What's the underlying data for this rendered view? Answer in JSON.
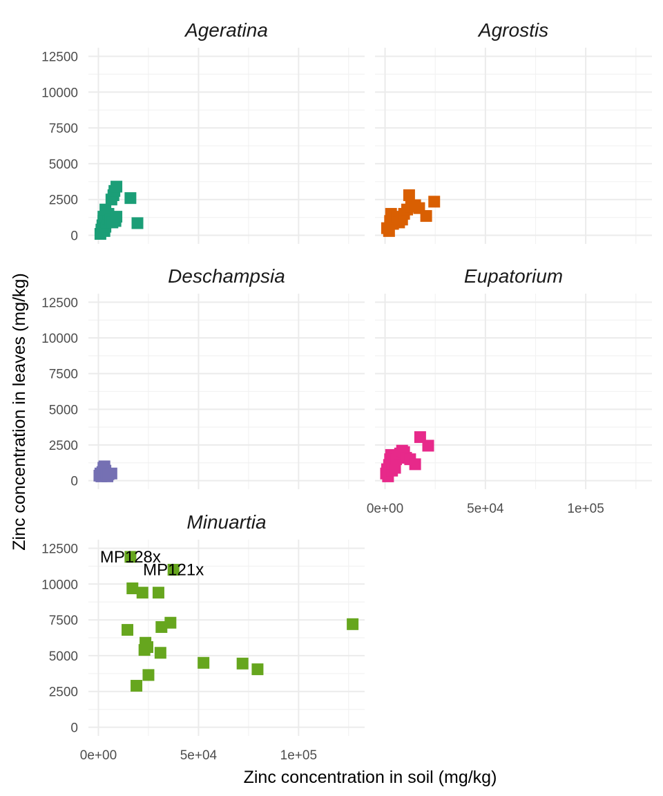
{
  "chart_data": {
    "type": "scatter",
    "facet_by": "genus",
    "xlabel": "Zinc concentration in soil (mg/kg)",
    "ylabel": "Zinc concentration in leaves (mg/kg)",
    "xlim": [
      -5000,
      133000
    ],
    "ylim": [
      -600,
      13100
    ],
    "x_ticks": [
      0,
      50000,
      100000
    ],
    "x_tick_labels": [
      "0e+00",
      "5e+04",
      "1e+05"
    ],
    "y_ticks": [
      0,
      2500,
      5000,
      7500,
      10000,
      12500
    ],
    "y_tick_labels": [
      "0",
      "2500",
      "5000",
      "7500",
      "10000",
      "12500"
    ],
    "grid": true,
    "marker": "square",
    "panels": [
      {
        "name": "Ageratina",
        "color": "#1b9e77",
        "points": [
          [
            1000,
            100
          ],
          [
            1500,
            400
          ],
          [
            2000,
            700
          ],
          [
            2500,
            1000
          ],
          [
            3000,
            300
          ],
          [
            3500,
            600
          ],
          [
            4000,
            900
          ],
          [
            2500,
            1300
          ],
          [
            4500,
            1200
          ],
          [
            5000,
            1500
          ],
          [
            3500,
            1800
          ],
          [
            6000,
            1100
          ],
          [
            7000,
            900
          ],
          [
            8500,
            1000
          ],
          [
            9000,
            1300
          ],
          [
            6500,
            2500
          ],
          [
            7500,
            2800
          ],
          [
            8000,
            3100
          ],
          [
            9000,
            3400
          ],
          [
            16000,
            2600
          ],
          [
            19500,
            850
          ]
        ]
      },
      {
        "name": "Agrostis",
        "color": "#d95f02",
        "points": [
          [
            1000,
            500
          ],
          [
            2000,
            300
          ],
          [
            2500,
            1000
          ],
          [
            3000,
            1500
          ],
          [
            4000,
            800
          ],
          [
            5000,
            1200
          ],
          [
            6000,
            1300
          ],
          [
            7000,
            900
          ],
          [
            8500,
            1100
          ],
          [
            9500,
            1500
          ],
          [
            11000,
            1800
          ],
          [
            12000,
            2800
          ],
          [
            13000,
            2000
          ],
          [
            15000,
            2100
          ],
          [
            17000,
            1900
          ],
          [
            20500,
            1350
          ],
          [
            24500,
            2350
          ]
        ]
      },
      {
        "name": "Deschampsia",
        "color": "#7570b3",
        "points": [
          [
            500,
            350
          ],
          [
            1000,
            500
          ],
          [
            1500,
            300
          ],
          [
            2000,
            600
          ],
          [
            2500,
            900
          ],
          [
            3000,
            1000
          ],
          [
            3500,
            700
          ],
          [
            4000,
            400
          ],
          [
            4500,
            300
          ],
          [
            5000,
            450
          ],
          [
            6500,
            500
          ]
        ]
      },
      {
        "name": "Eupatorium",
        "color": "#e7298a",
        "points": [
          [
            500,
            500
          ],
          [
            1000,
            800
          ],
          [
            1500,
            300
          ],
          [
            2000,
            1100
          ],
          [
            2500,
            1500
          ],
          [
            3000,
            1800
          ],
          [
            3500,
            700
          ],
          [
            4000,
            1200
          ],
          [
            5000,
            900
          ],
          [
            5500,
            1500
          ],
          [
            6500,
            1700
          ],
          [
            7500,
            1900
          ],
          [
            8500,
            2100
          ],
          [
            9500,
            2000
          ],
          [
            10500,
            1600
          ],
          [
            12500,
            1500
          ],
          [
            15000,
            1150
          ],
          [
            17500,
            3050
          ],
          [
            21500,
            2450
          ]
        ]
      },
      {
        "name": "Minuartia",
        "color": "#66a61e",
        "points": [
          [
            14500,
            6800
          ],
          [
            16000,
            11900
          ],
          [
            17000,
            9700
          ],
          [
            19000,
            2900
          ],
          [
            22000,
            9400
          ],
          [
            23000,
            5400
          ],
          [
            23500,
            5900
          ],
          [
            24500,
            5600
          ],
          [
            25000,
            3650
          ],
          [
            30000,
            9400
          ],
          [
            31500,
            7000
          ],
          [
            31000,
            5200
          ],
          [
            36000,
            7300
          ],
          [
            37500,
            11000
          ],
          [
            52500,
            4500
          ],
          [
            72000,
            4450
          ],
          [
            79500,
            4050
          ],
          [
            127000,
            7200
          ]
        ],
        "labels": [
          {
            "text": "MP128x",
            "x": 16000,
            "y": 11900
          },
          {
            "text": "MP121x",
            "x": 37500,
            "y": 11000
          }
        ]
      }
    ]
  }
}
